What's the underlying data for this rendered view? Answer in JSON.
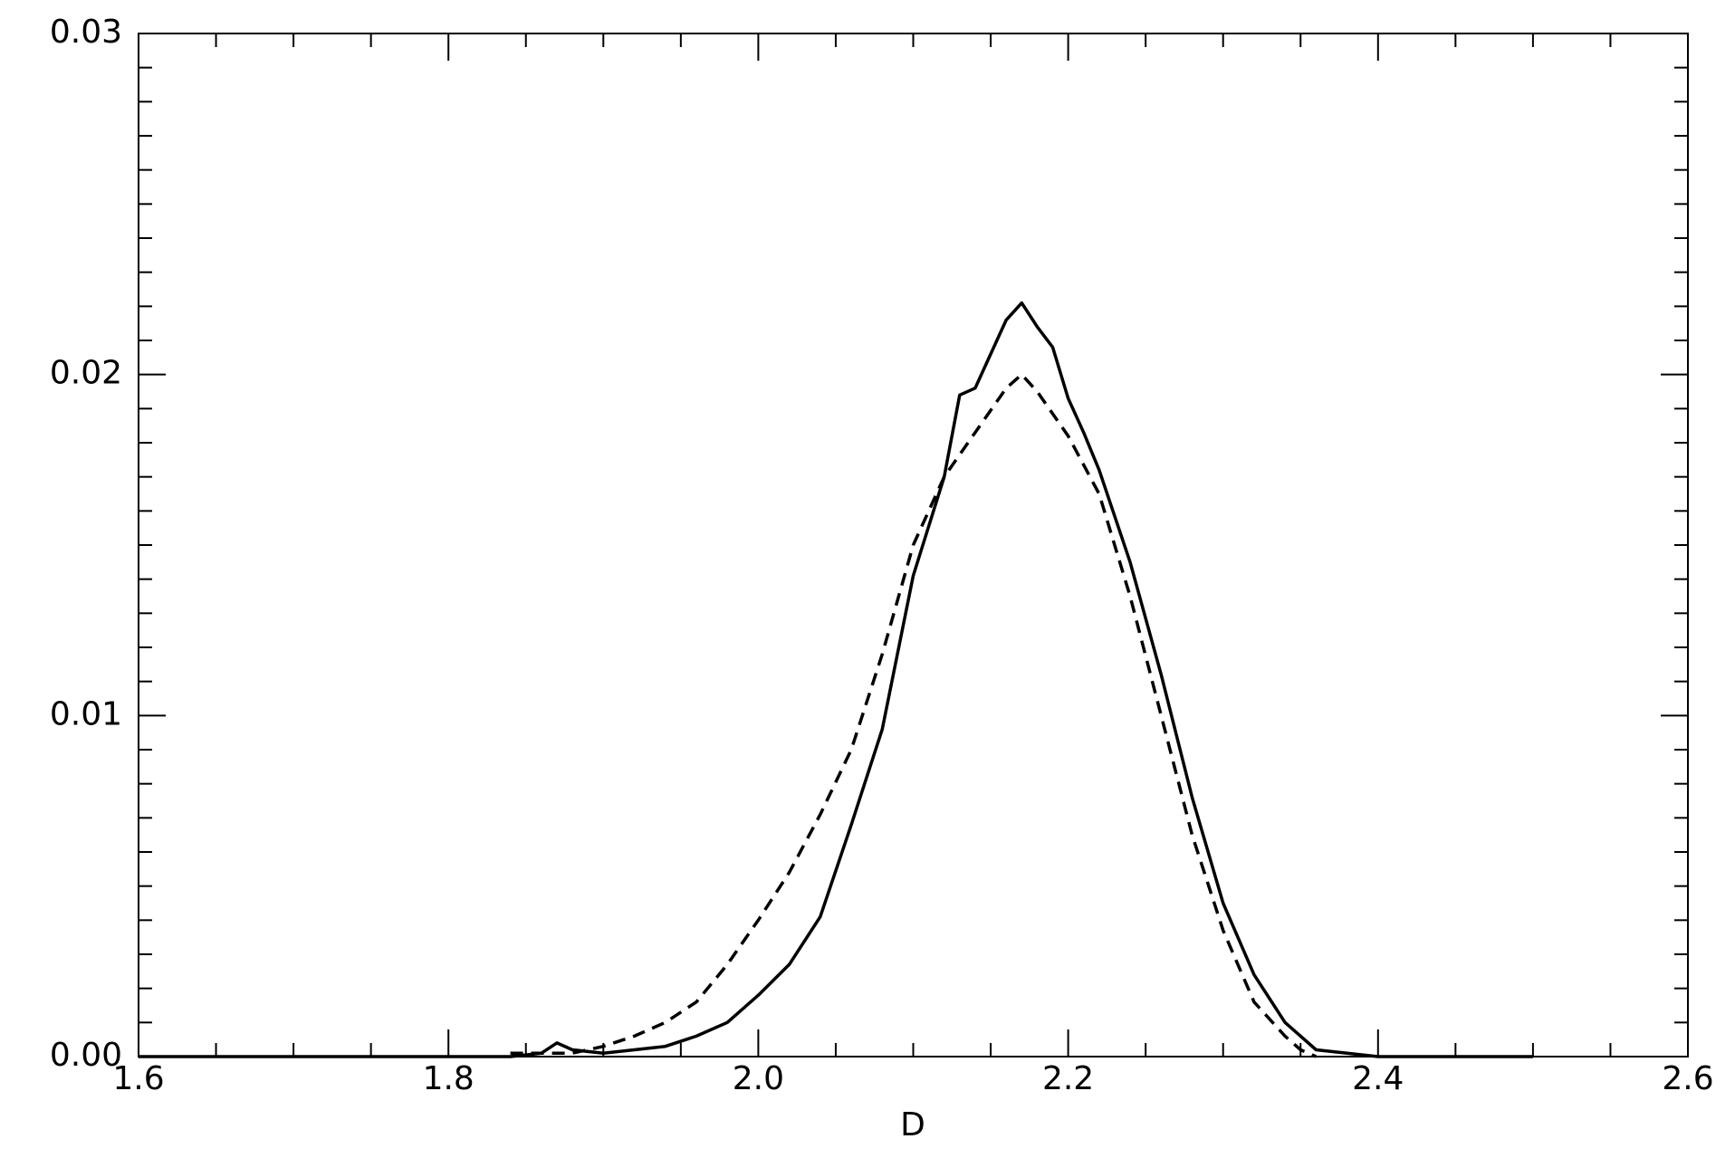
{
  "chart_data": {
    "type": "line",
    "x_label": "D",
    "xlim": [
      1.6,
      2.6
    ],
    "xticks": [
      1.6,
      1.8,
      {
        "value": 2,
        "label": "2.0"
      },
      2.2,
      2.4,
      2.6
    ],
    "xminorticks": [
      1.65,
      1.7,
      1.75,
      1.85,
      1.9,
      1.95,
      2.05,
      2.1,
      2.15,
      2.25,
      2.3,
      2.35,
      2.45,
      2.5,
      2.55
    ],
    "ylim": [
      0,
      0.03
    ],
    "yticks": [
      {
        "value": 0,
        "label": "0.00"
      },
      0.01,
      0.02,
      0.03
    ],
    "yminorticks": [
      0.001,
      0.002,
      0.003,
      0.004,
      0.005,
      0.006,
      0.007,
      0.008,
      0.009,
      0.011,
      0.012,
      0.013,
      0.014,
      0.015,
      0.016,
      0.017,
      0.018,
      0.019,
      0.021,
      0.022,
      0.023,
      0.024,
      0.025,
      0.026,
      0.027,
      0.028,
      0.029
    ],
    "series": [
      {
        "color": "#000000",
        "dash": "solid",
        "x": [
          1.6,
          1.84,
          1.86,
          1.87,
          1.88,
          1.9,
          1.92,
          1.94,
          1.96,
          1.98,
          2.0,
          2.02,
          2.04,
          2.06,
          2.08,
          2.1,
          2.12,
          2.13,
          2.14,
          2.15,
          2.16,
          2.17,
          2.18,
          2.19,
          2.2,
          2.21,
          2.22,
          2.24,
          2.26,
          2.28,
          2.3,
          2.32,
          2.34,
          2.36,
          2.38,
          2.4,
          2.5
        ],
        "values": [
          0,
          0,
          0.0001,
          0.0004,
          0.0002,
          0.0001,
          0.0002,
          0.0003,
          0.0006,
          0.001,
          0.0018,
          0.0027,
          0.0041,
          0.0068,
          0.0096,
          0.0141,
          0.017,
          0.0194,
          0.0196,
          0.0206,
          0.0216,
          0.0221,
          0.0214,
          0.0208,
          0.0193,
          0.0183,
          0.0172,
          0.0145,
          0.0112,
          0.0076,
          0.0045,
          0.0024,
          0.001,
          0.0002,
          0.0001,
          0,
          0
        ]
      },
      {
        "color": "#000000",
        "dash": "dashed",
        "x": [
          1.84,
          1.88,
          1.9,
          1.92,
          1.94,
          1.96,
          1.98,
          2.0,
          2.02,
          2.04,
          2.06,
          2.08,
          2.1,
          2.12,
          2.14,
          2.16,
          2.17,
          2.18,
          2.2,
          2.22,
          2.24,
          2.26,
          2.28,
          2.3,
          2.32,
          2.34,
          2.35,
          2.36
        ],
        "values": [
          0.0001,
          0.0001,
          0.0003,
          0.0006,
          0.001,
          0.0016,
          0.0027,
          0.004,
          0.0054,
          0.0071,
          0.009,
          0.0118,
          0.015,
          0.017,
          0.0183,
          0.0196,
          0.02,
          0.0195,
          0.0182,
          0.0165,
          0.0135,
          0.01,
          0.0065,
          0.0037,
          0.0016,
          0.0006,
          0.0002,
          0
        ]
      }
    ]
  }
}
